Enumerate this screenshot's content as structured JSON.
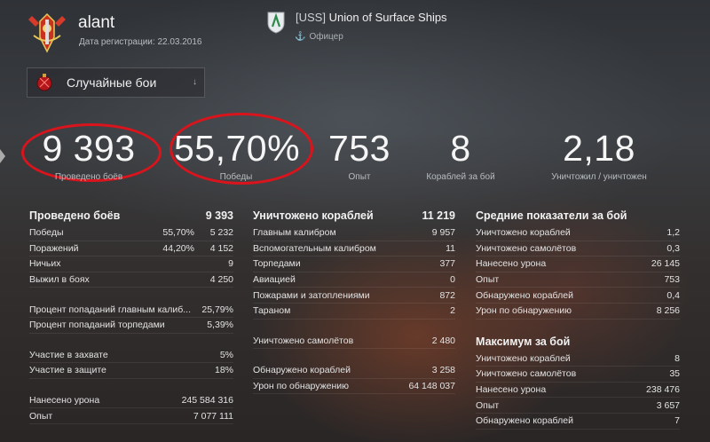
{
  "header": {
    "username": "alant",
    "reg_date": "Дата регистрации: 22.03.2016",
    "clan_tag": "[USS]",
    "clan_name": "Union of Surface Ships",
    "clan_role": "Офицер"
  },
  "mode_select": {
    "label": "Случайные бои"
  },
  "summary": [
    {
      "value": "9 393",
      "label": "Проведено боёв"
    },
    {
      "value": "55,70%",
      "label": "Победы"
    },
    {
      "value": "753",
      "label": "Опыт"
    },
    {
      "value": "8",
      "label": "Кораблей за бой"
    },
    {
      "value": "2,18",
      "label": "Уничтожил / уничтожен"
    }
  ],
  "col1": {
    "header": {
      "label": "Проведено боёв",
      "value": "9 393"
    },
    "rows_a": [
      {
        "label": "Победы",
        "pct": "55,70%",
        "value": "5 232"
      },
      {
        "label": "Поражений",
        "pct": "44,20%",
        "value": "4 152"
      },
      {
        "label": "Ничьих",
        "pct": "",
        "value": "9"
      },
      {
        "label": "Выжил в боях",
        "pct": "",
        "value": "4 250"
      }
    ],
    "rows_b": [
      {
        "label": "Процент попаданий главным калиб...",
        "value": "25,79%"
      },
      {
        "label": "Процент попаданий торпедами",
        "value": "5,39%"
      }
    ],
    "rows_c": [
      {
        "label": "Участие в захвате",
        "value": "5%"
      },
      {
        "label": "Участие в защите",
        "value": "18%"
      }
    ],
    "rows_d": [
      {
        "label": "Нанесено урона",
        "value": "245 584 316"
      },
      {
        "label": "Опыт",
        "value": "7 077 111"
      }
    ]
  },
  "col2": {
    "header": {
      "label": "Уничтожено кораблей",
      "value": "11 219"
    },
    "rows_a": [
      {
        "label": "Главным калибром",
        "value": "9 957"
      },
      {
        "label": "Вспомогательным калибром",
        "value": "11"
      },
      {
        "label": "Торпедами",
        "value": "377"
      },
      {
        "label": "Авиацией",
        "value": "0"
      },
      {
        "label": "Пожарами и затоплениями",
        "value": "872"
      },
      {
        "label": "Тараном",
        "value": "2"
      }
    ],
    "rows_b": [
      {
        "label": "Уничтожено самолётов",
        "value": "2 480"
      }
    ],
    "rows_c": [
      {
        "label": "Обнаружено кораблей",
        "value": "3 258"
      },
      {
        "label": "Урон по обнаружению",
        "value": "64 148 037"
      }
    ]
  },
  "col3": {
    "header": {
      "label": "Средние показатели за бой"
    },
    "rows_a": [
      {
        "label": "Уничтожено кораблей",
        "value": "1,2"
      },
      {
        "label": "Уничтожено самолётов",
        "value": "0,3"
      },
      {
        "label": "Нанесено урона",
        "value": "26 145"
      },
      {
        "label": "Опыт",
        "value": "753"
      },
      {
        "label": "Обнаружено кораблей",
        "value": "0,4"
      },
      {
        "label": "Урон по обнаружению",
        "value": "8 256"
      }
    ],
    "header2": {
      "label": "Максимум за бой"
    },
    "rows_b": [
      {
        "label": "Уничтожено кораблей",
        "value": "8"
      },
      {
        "label": "Уничтожено самолётов",
        "value": "35"
      },
      {
        "label": "Нанесено урона",
        "value": "238 476"
      },
      {
        "label": "Опыт",
        "value": "3 657"
      },
      {
        "label": "Обнаружено кораблей",
        "value": "7"
      }
    ]
  },
  "colors": {
    "highlight_oval": "#d9141c",
    "text": "#e8e8e8"
  }
}
